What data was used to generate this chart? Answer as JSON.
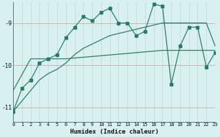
{
  "xlabel": "Humidex (Indice chaleur)",
  "bg_color": "#d8f0f0",
  "grid_color_h": "#c8a8a8",
  "grid_color_v": "#c8d8d8",
  "line_color": "#2a7a6a",
  "xlim": [
    0,
    23
  ],
  "ylim": [
    -11.35,
    -8.5
  ],
  "yticks": [
    -11,
    -10,
    -9
  ],
  "xticks": [
    0,
    1,
    2,
    3,
    4,
    5,
    6,
    7,
    8,
    9,
    10,
    11,
    12,
    13,
    14,
    15,
    16,
    17,
    18,
    19,
    20,
    21,
    22,
    23
  ],
  "series1_x": [
    0,
    1,
    2,
    3,
    4,
    5,
    6,
    7,
    8,
    9,
    10,
    11,
    12,
    13,
    14,
    15,
    16,
    17,
    18,
    19,
    20,
    21,
    22,
    23
  ],
  "series1_y": [
    -11.1,
    -10.55,
    -10.35,
    -9.95,
    -9.85,
    -9.75,
    -9.35,
    -9.1,
    -8.85,
    -8.95,
    -8.75,
    -8.65,
    -9.0,
    -9.0,
    -9.3,
    -9.2,
    -8.55,
    -8.6,
    -10.45,
    -9.55,
    -9.1,
    -9.1,
    -10.05,
    -9.7
  ],
  "series2_x": [
    0,
    2,
    3,
    4,
    5,
    6,
    17,
    18,
    19,
    20,
    21,
    22,
    23
  ],
  "series2_y": [
    -10.6,
    -9.85,
    -9.85,
    -9.85,
    -9.85,
    -9.85,
    -9.65,
    -9.65,
    -9.65,
    -9.65,
    -9.65,
    -9.65,
    -9.65
  ],
  "series3_x": [
    0,
    1,
    2,
    3,
    4,
    5,
    6,
    7,
    8,
    9,
    10,
    11,
    12,
    13,
    14,
    15,
    16,
    17,
    18,
    19,
    20,
    21,
    22,
    23
  ],
  "series3_y": [
    -11.1,
    -10.85,
    -10.6,
    -10.35,
    -10.2,
    -10.1,
    -9.95,
    -9.75,
    -9.6,
    -9.5,
    -9.4,
    -9.3,
    -9.25,
    -9.2,
    -9.15,
    -9.1,
    -9.05,
    -9.0,
    -9.0,
    -9.0,
    -9.0,
    -9.0,
    -9.0,
    -9.55
  ]
}
